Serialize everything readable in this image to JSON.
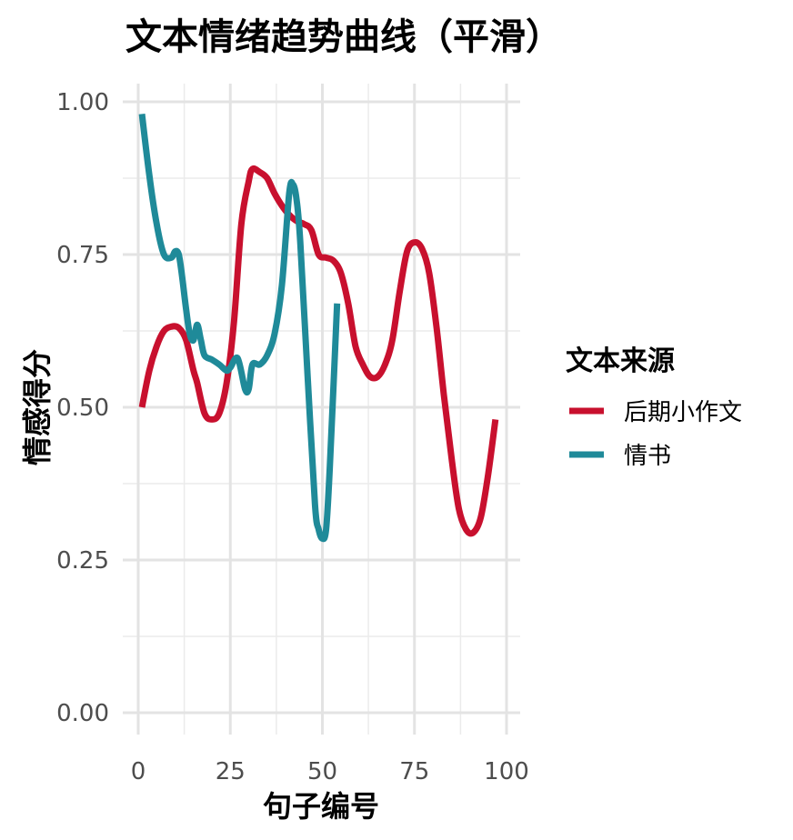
{
  "chart_data": {
    "type": "line",
    "title": "文本情绪趋势曲线（平滑）",
    "xlabel": "句子编号",
    "ylabel": "情感得分",
    "xlim": [
      0,
      100
    ],
    "ylim": [
      0,
      1
    ],
    "x_ticks": [
      0,
      25,
      50,
      75,
      100
    ],
    "x_tick_labels": [
      "0",
      "25",
      "50",
      "75",
      "100"
    ],
    "y_ticks": [
      0,
      0.25,
      0.5,
      0.75,
      1.0
    ],
    "y_tick_labels": [
      "0.00",
      "0.25",
      "0.50",
      "0.75",
      "1.00"
    ],
    "grid": true,
    "legend": {
      "title": "文本来源",
      "position": "right"
    },
    "series": [
      {
        "name": "后期小作文",
        "color": "#C8102E",
        "points": [
          [
            1,
            0.5
          ],
          [
            3,
            0.56
          ],
          [
            5,
            0.6
          ],
          [
            7,
            0.625
          ],
          [
            9,
            0.632
          ],
          [
            11,
            0.63
          ],
          [
            13,
            0.61
          ],
          [
            15,
            0.56
          ],
          [
            16,
            0.54
          ],
          [
            18,
            0.49
          ],
          [
            20,
            0.48
          ],
          [
            22,
            0.49
          ],
          [
            24,
            0.54
          ],
          [
            26,
            0.64
          ],
          [
            28,
            0.8
          ],
          [
            30,
            0.87
          ],
          [
            31,
            0.89
          ],
          [
            33,
            0.885
          ],
          [
            35,
            0.875
          ],
          [
            37,
            0.85
          ],
          [
            39,
            0.83
          ],
          [
            41,
            0.815
          ],
          [
            43,
            0.805
          ],
          [
            45,
            0.8
          ],
          [
            47,
            0.79
          ],
          [
            49,
            0.75
          ],
          [
            51,
            0.745
          ],
          [
            53,
            0.74
          ],
          [
            55,
            0.72
          ],
          [
            57,
            0.67
          ],
          [
            59,
            0.6
          ],
          [
            61,
            0.57
          ],
          [
            63,
            0.55
          ],
          [
            65,
            0.55
          ],
          [
            67,
            0.57
          ],
          [
            69,
            0.61
          ],
          [
            71,
            0.69
          ],
          [
            73,
            0.755
          ],
          [
            75,
            0.77
          ],
          [
            77,
            0.76
          ],
          [
            79,
            0.72
          ],
          [
            81,
            0.63
          ],
          [
            83,
            0.52
          ],
          [
            85,
            0.42
          ],
          [
            87,
            0.335
          ],
          [
            89,
            0.3
          ],
          [
            91,
            0.295
          ],
          [
            93,
            0.32
          ],
          [
            95,
            0.39
          ],
          [
            97,
            0.48
          ]
        ]
      },
      {
        "name": "情书",
        "color": "#1F8A99",
        "points": [
          [
            1,
            0.98
          ],
          [
            3,
            0.88
          ],
          [
            5,
            0.8
          ],
          [
            7,
            0.75
          ],
          [
            9,
            0.745
          ],
          [
            10,
            0.755
          ],
          [
            11,
            0.75
          ],
          [
            12,
            0.71
          ],
          [
            13,
            0.66
          ],
          [
            14,
            0.62
          ],
          [
            15,
            0.61
          ],
          [
            16,
            0.635
          ],
          [
            17,
            0.61
          ],
          [
            18,
            0.585
          ],
          [
            20,
            0.578
          ],
          [
            22,
            0.57
          ],
          [
            24,
            0.56
          ],
          [
            25,
            0.565
          ],
          [
            27,
            0.58
          ],
          [
            29,
            0.53
          ],
          [
            30,
            0.53
          ],
          [
            31,
            0.57
          ],
          [
            33,
            0.57
          ],
          [
            35,
            0.585
          ],
          [
            37,
            0.62
          ],
          [
            39,
            0.7
          ],
          [
            41,
            0.85
          ],
          [
            42,
            0.865
          ],
          [
            43,
            0.84
          ],
          [
            44,
            0.77
          ],
          [
            46,
            0.55
          ],
          [
            48,
            0.34
          ],
          [
            49,
            0.3
          ],
          [
            50,
            0.285
          ],
          [
            51,
            0.3
          ],
          [
            52,
            0.4
          ],
          [
            54,
            0.67
          ]
        ]
      }
    ]
  }
}
